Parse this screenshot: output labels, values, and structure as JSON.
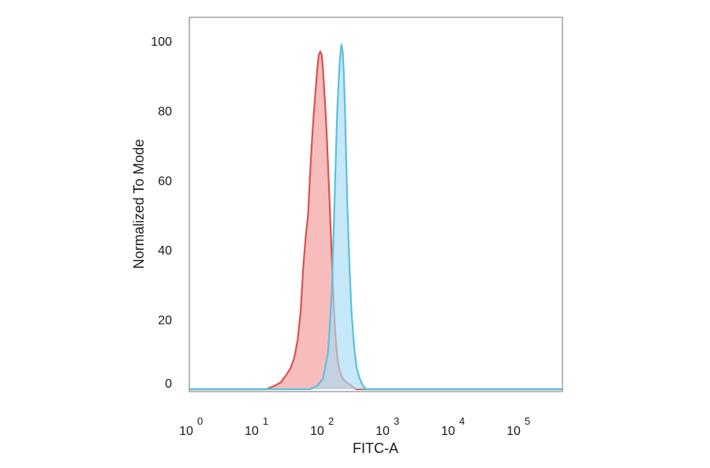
{
  "chart_data": {
    "type": "area",
    "title": "",
    "xlabel": "FITC-A",
    "ylabel": "Normalized To Mode",
    "xscale": "log",
    "xlim": [
      1,
      500000
    ],
    "ylim": [
      0,
      105
    ],
    "x_ticks": [
      {
        "base": "10",
        "exp": "0",
        "value": 1
      },
      {
        "base": "10",
        "exp": "1",
        "value": 10
      },
      {
        "base": "10",
        "exp": "2",
        "value": 100
      },
      {
        "base": "10",
        "exp": "3",
        "value": 1000
      },
      {
        "base": "10",
        "exp": "4",
        "value": 10000
      },
      {
        "base": "10",
        "exp": "5",
        "value": 100000
      }
    ],
    "y_ticks": [
      "0",
      "20",
      "40",
      "60",
      "80",
      "100"
    ],
    "grid": false,
    "legend": "none",
    "series": [
      {
        "color": "#d9534f",
        "fill": "#f19a98",
        "points": [
          [
            1,
            0
          ],
          [
            15,
            0
          ],
          [
            20,
            1
          ],
          [
            25,
            2
          ],
          [
            30,
            4
          ],
          [
            35,
            6
          ],
          [
            40,
            9
          ],
          [
            45,
            14
          ],
          [
            50,
            22
          ],
          [
            55,
            35
          ],
          [
            60,
            44
          ],
          [
            65,
            50
          ],
          [
            70,
            62
          ],
          [
            75,
            72
          ],
          [
            80,
            80
          ],
          [
            85,
            86
          ],
          [
            90,
            92
          ],
          [
            95,
            96
          ],
          [
            100,
            97
          ],
          [
            105,
            96
          ],
          [
            110,
            92
          ],
          [
            115,
            86
          ],
          [
            120,
            80
          ],
          [
            125,
            74
          ],
          [
            130,
            66
          ],
          [
            140,
            52
          ],
          [
            150,
            38
          ],
          [
            160,
            25
          ],
          [
            170,
            16
          ],
          [
            180,
            10
          ],
          [
            190,
            7
          ],
          [
            200,
            5
          ],
          [
            220,
            3
          ],
          [
            250,
            2
          ],
          [
            300,
            1
          ],
          [
            350,
            0
          ],
          [
            500000,
            0
          ]
        ]
      },
      {
        "color": "#5bc0de",
        "fill": "#a8dcf5",
        "points": [
          [
            1,
            0
          ],
          [
            70,
            0
          ],
          [
            90,
            1
          ],
          [
            110,
            3
          ],
          [
            130,
            10
          ],
          [
            140,
            18
          ],
          [
            150,
            28
          ],
          [
            160,
            45
          ],
          [
            170,
            62
          ],
          [
            180,
            78
          ],
          [
            190,
            88
          ],
          [
            200,
            95
          ],
          [
            210,
            99
          ],
          [
            220,
            97
          ],
          [
            230,
            90
          ],
          [
            240,
            78
          ],
          [
            250,
            65
          ],
          [
            260,
            52
          ],
          [
            280,
            35
          ],
          [
            300,
            22
          ],
          [
            330,
            12
          ],
          [
            360,
            6
          ],
          [
            400,
            3
          ],
          [
            450,
            1
          ],
          [
            500,
            0
          ],
          [
            500000,
            0
          ]
        ]
      }
    ]
  }
}
